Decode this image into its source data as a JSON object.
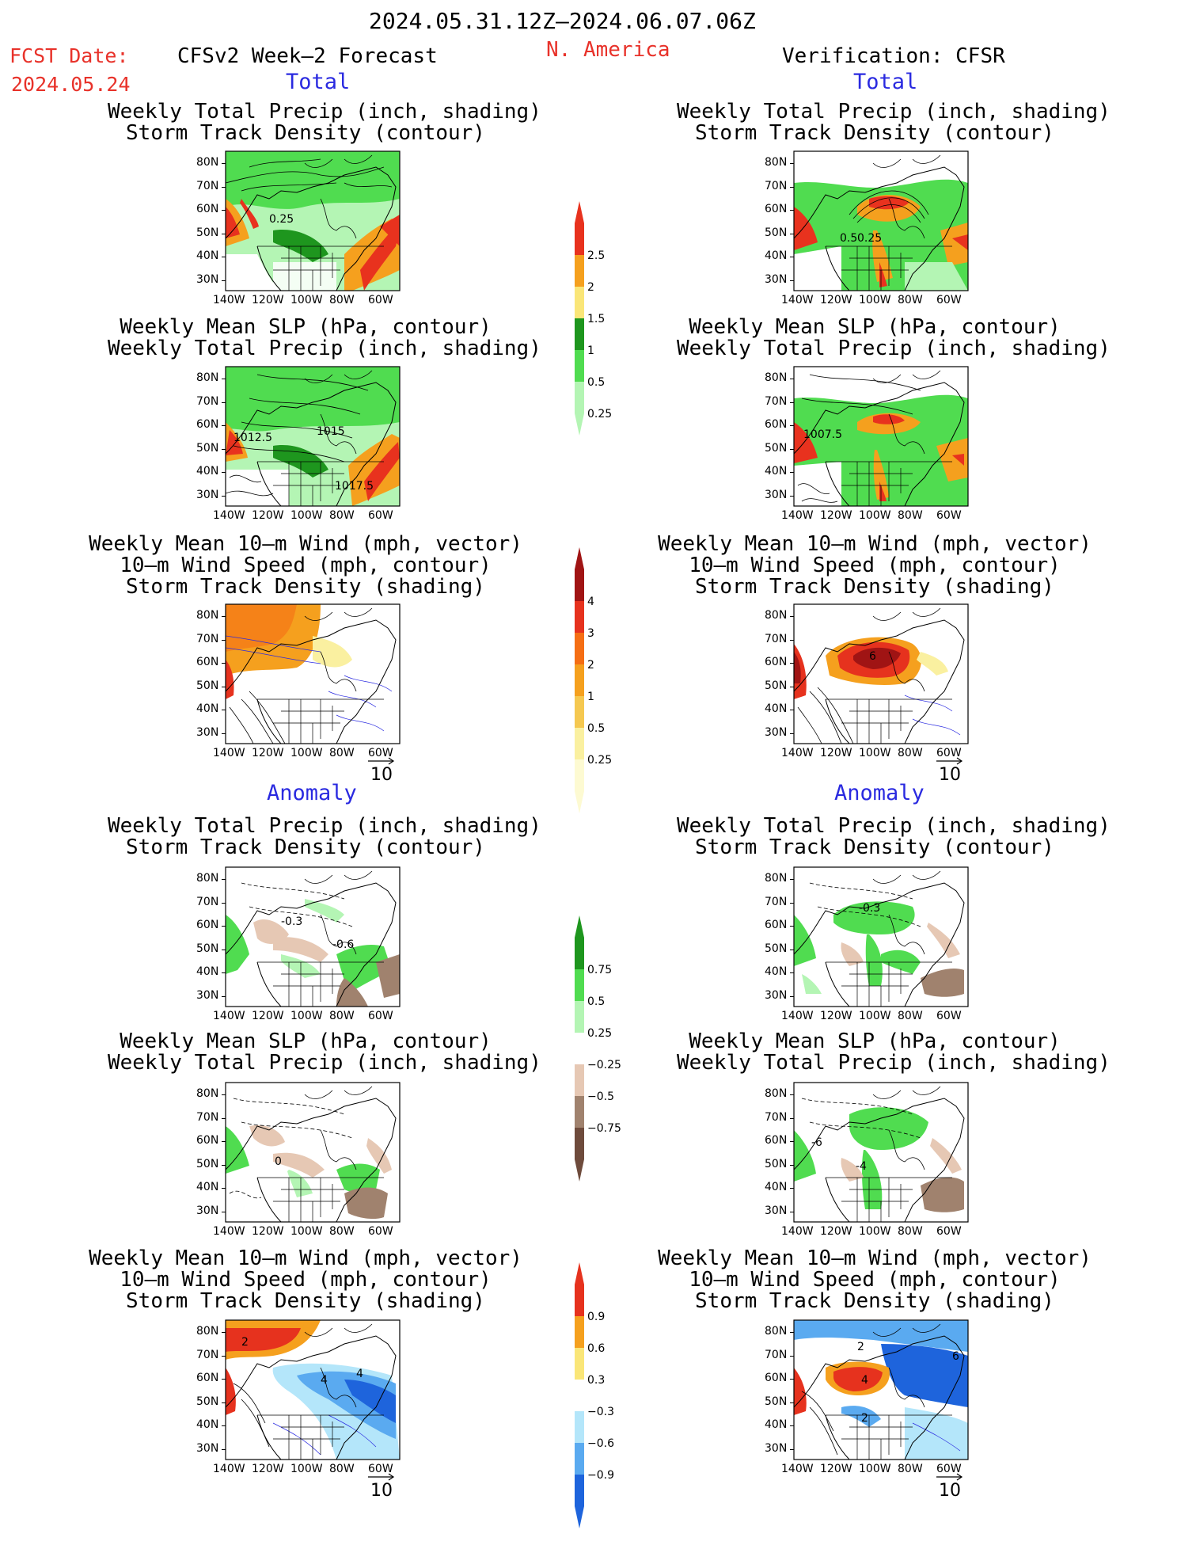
{
  "header": {
    "period": "2024.05.31.12Z–2024.06.07.06Z",
    "fcst_label": "FCST Date:",
    "fcst_date": "2024.05.24",
    "left_title": "CFSv2 Week–2 Forecast",
    "region": "N. America",
    "right_title": "Verification: CFSR"
  },
  "sections": {
    "total": "Total",
    "anomaly": "Anomaly"
  },
  "titles": {
    "precip_storm": [
      "Weekly Total Precip (inch, shading)",
      "Storm Track Density (contour)"
    ],
    "slp_precip": [
      "Weekly Mean SLP (hPa, contour)",
      "Weekly Total Precip (inch, shading)"
    ],
    "wind": [
      "Weekly Mean 10–m Wind (mph, vector)",
      "10–m Wind Speed (mph, contour)",
      "Storm Track Density (shading)"
    ]
  },
  "axes": {
    "lat_ticks": [
      "80N",
      "70N",
      "60N",
      "50N",
      "40N",
      "30N"
    ],
    "lon_ticks": [
      "140W",
      "120W",
      "100W",
      "80W",
      "60W"
    ]
  },
  "vector_ref": "10",
  "contour_labels": {
    "p1_left": "0.25",
    "p1_right_a": "0.5",
    "p1_right_b": "0.25",
    "p2_left_a": "1012.5",
    "p2_left_b": "1015",
    "p2_left_c": "1017.5",
    "p2_right": "1007.5",
    "p3_right": "6",
    "p4_left_a": "-0.3",
    "p4_left_b": "-0.6",
    "p4_right": "-0.3",
    "p5_left": "0",
    "p5_right_a": "-6",
    "p5_right_b": "-4",
    "p6_left_a": "2",
    "p6_left_b": "4",
    "p6_left_c": "4",
    "p6_right_a": "2",
    "p6_right_b": "4",
    "p6_right_c": "2",
    "p6_right_d": "6"
  },
  "colorbars": {
    "precip_total": {
      "labels": [
        "2.5",
        "2",
        "1.5",
        "1",
        "0.5",
        "0.25"
      ],
      "colors": [
        "#e8321e",
        "#f5a01e",
        "#fae678",
        "#1e961e",
        "#50dc50",
        "#b4f5b4"
      ]
    },
    "storm_total": {
      "labels": [
        "4",
        "3",
        "2",
        "1",
        "0.5",
        "0.25"
      ],
      "colors": [
        "#a01414",
        "#e6321e",
        "#f56e14",
        "#f5a01e",
        "#f5c850",
        "#faf0a0",
        "#fdfad2"
      ]
    },
    "precip_anom": {
      "labels": [
        "0.75",
        "0.5",
        "0.25",
        "−0.25",
        "−0.5",
        "−0.75"
      ],
      "colors": [
        "#1e961e",
        "#50dc50",
        "#b4f5b4",
        "#ffffff",
        "#e6c8b4",
        "#a0826e",
        "#6e4b3c"
      ]
    },
    "storm_anom": {
      "labels": [
        "0.9",
        "0.6",
        "0.3",
        "−0.3",
        "−0.6",
        "−0.9"
      ],
      "colors": [
        "#e6321e",
        "#f5a01e",
        "#fae678",
        "#ffffff",
        "#b4e6fa",
        "#5aaaf0",
        "#1e64dc"
      ]
    }
  }
}
